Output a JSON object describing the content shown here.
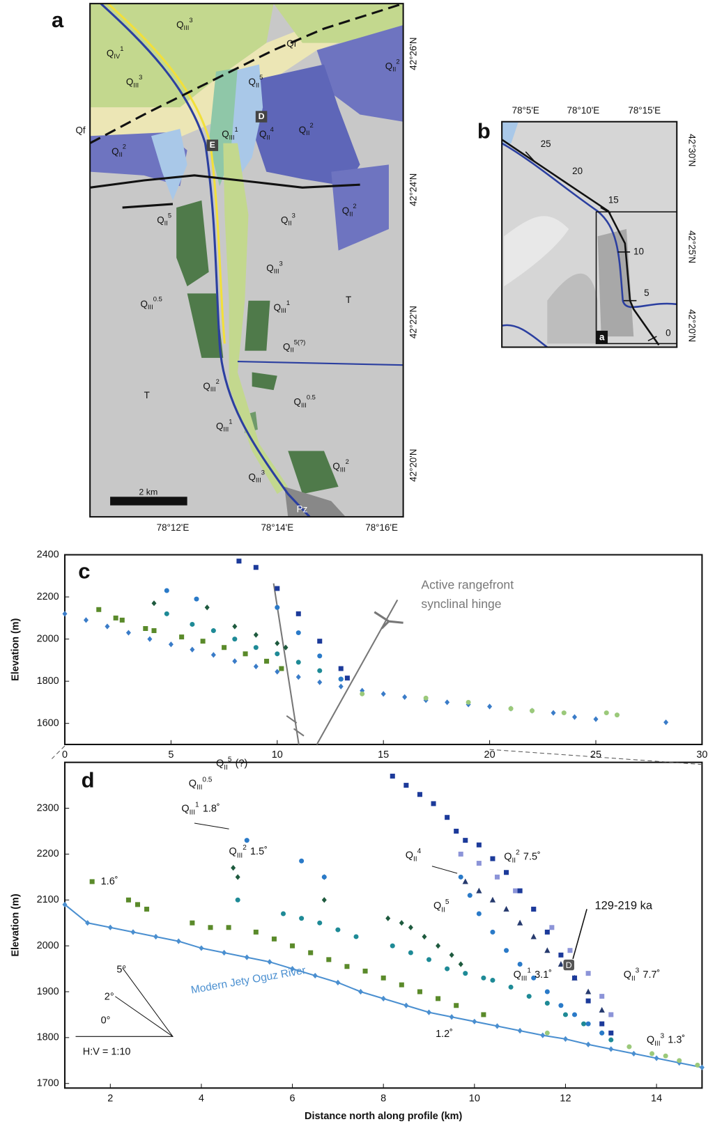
{
  "panel_labels": {
    "a": "a",
    "b": "b",
    "c": "c",
    "d": "d"
  },
  "map_a": {
    "lon_labels": [
      "78°12'E",
      "78°14'E",
      "78°16'E"
    ],
    "lat_labels": [
      "42°26'N",
      "42°24'N",
      "42°22'N",
      "42°20'N"
    ],
    "scale_label": "2 km",
    "labels": [
      {
        "text": "Q",
        "sub": "III",
        "sup": "3"
      },
      {
        "text": "Q",
        "sub": "IV",
        "sup": "1"
      },
      {
        "text": "Q",
        "sub": "III",
        "sup": "3"
      },
      "Qf",
      "Qf",
      {
        "text": "Q",
        "sub": "II",
        "sup": "2"
      },
      {
        "text": "Q",
        "sub": "II",
        "sup": "5"
      },
      {
        "text": "Q",
        "sub": "III",
        "sup": "1"
      },
      {
        "text": "Q",
        "sub": "II",
        "sup": "4"
      },
      {
        "text": "Q",
        "sub": "II",
        "sup": "2"
      },
      {
        "text": "Q",
        "sub": "II",
        "sup": "2"
      },
      {
        "text": "Q",
        "sub": "II",
        "sup": "5"
      },
      {
        "text": "Q",
        "sub": "II",
        "sup": "3"
      },
      {
        "text": "Q",
        "sub": "II",
        "sup": "2"
      },
      {
        "text": "Q",
        "sub": "III",
        "sup": "3"
      },
      {
        "text": "Q",
        "sub": "III",
        "sup": "0.5"
      },
      {
        "text": "Q",
        "sub": "III",
        "sup": "1"
      },
      "T",
      {
        "text": "Q",
        "sub": "II",
        "sup": "5(?)"
      },
      "T",
      {
        "text": "Q",
        "sub": "III",
        "sup": "2"
      },
      {
        "text": "Q",
        "sub": "III",
        "sup": "0.5"
      },
      {
        "text": "Q",
        "sub": "III",
        "sup": "1"
      },
      {
        "text": "Q",
        "sub": "III",
        "sup": "2"
      },
      {
        "text": "Q",
        "sub": "III",
        "sup": "3"
      },
      "Pz"
    ],
    "site_labels": [
      "D",
      "E"
    ]
  },
  "map_b": {
    "lon_labels": [
      "78°5'E",
      "78°10'E",
      "78°15'E"
    ],
    "lat_labels": [
      "42°30'N",
      "42°25'N",
      "42°20'N"
    ],
    "profile_ticks": [
      25,
      20,
      15,
      10,
      5,
      0
    ],
    "inset_label": "a"
  },
  "chart_data": [
    {
      "type": "scatter",
      "ylabel": "Elevation (m)",
      "xlim": [
        0,
        30
      ],
      "ylim": [
        1500,
        2400
      ],
      "xticks": [
        0,
        5,
        10,
        15,
        20,
        25,
        30
      ],
      "yticks": [
        1600,
        1800,
        2000,
        2200,
        2400
      ],
      "annotations": [
        "Active rangefront",
        "synclinal hinge"
      ],
      "series": [
        {
          "color": "#3a7cc8",
          "marker": "diamond",
          "x": [
            0,
            1,
            2,
            3,
            4,
            5,
            6,
            7,
            8,
            9,
            10,
            11,
            12,
            13,
            14,
            15,
            16,
            17,
            18,
            19,
            20,
            21,
            22,
            23,
            24,
            25,
            28.3
          ],
          "values": [
            2120,
            2090,
            2060,
            2030,
            2000,
            1975,
            1950,
            1925,
            1895,
            1870,
            1845,
            1820,
            1795,
            1775,
            1755,
            1740,
            1725,
            1710,
            1700,
            1690,
            1680,
            1670,
            1660,
            1650,
            1630,
            1620,
            1605
          ]
        },
        {
          "color": "#9bc97a",
          "marker": "circle",
          "x": [
            14,
            17,
            19,
            21,
            22,
            23.5,
            25.5,
            26
          ],
          "values": [
            1740,
            1720,
            1700,
            1670,
            1660,
            1650,
            1650,
            1640
          ]
        },
        {
          "color": "#5a8a2a",
          "marker": "square",
          "x": [
            1.6,
            2.4,
            2.7,
            3.8,
            4.2,
            5.5,
            6.5,
            7.5,
            8.5,
            9.5,
            10.2
          ],
          "values": [
            2140,
            2100,
            2090,
            2050,
            2040,
            2010,
            1990,
            1960,
            1930,
            1895,
            1860
          ]
        },
        {
          "color": "#1e8a96",
          "marker": "circle",
          "x": [
            4.8,
            6,
            7,
            8,
            9,
            10,
            11,
            12,
            13
          ],
          "values": [
            2120,
            2070,
            2040,
            2000,
            1960,
            1930,
            1890,
            1850,
            1810
          ]
        },
        {
          "color": "#1e5a3e",
          "marker": "diamond",
          "x": [
            4.2,
            6.7,
            8,
            9,
            10,
            10.4
          ],
          "values": [
            2170,
            2150,
            2060,
            2020,
            1980,
            1960
          ]
        },
        {
          "color": "#2a7ac8",
          "marker": "circle",
          "x": [
            4.8,
            6.2,
            10,
            11,
            12,
            13
          ],
          "values": [
            2230,
            2190,
            2150,
            2030,
            1920,
            1810
          ]
        },
        {
          "color": "#1c3a9a",
          "marker": "square",
          "x": [
            8.2,
            9,
            10,
            11,
            12,
            13,
            13.3
          ],
          "values": [
            2370,
            2340,
            2240,
            2120,
            1990,
            1860,
            1815
          ]
        }
      ]
    },
    {
      "type": "scatter",
      "xlabel": "Distance north along profile (km)",
      "ylabel": "Elevation (m)",
      "xlim": [
        1,
        15
      ],
      "ylim": [
        1690,
        2400
      ],
      "xticks": [
        2,
        4,
        6,
        8,
        10,
        12,
        14
      ],
      "yticks": [
        1700,
        1800,
        1900,
        2000,
        2100,
        2200,
        2300
      ],
      "annotations": [
        {
          "text": "Q",
          "sub": "II",
          "sup": "5",
          "note": "(?)"
        },
        {
          "text": "Q",
          "sub": "III",
          "sup": "0.5"
        },
        {
          "text": "Q",
          "sub": "III",
          "sup": "1",
          "note": "1.8˚"
        },
        {
          "text": "Q",
          "sub": "III",
          "sup": "2",
          "note": "1.5˚"
        },
        "1.6˚",
        "Modern Jety Oguz River",
        "1.2˚",
        {
          "text": "Q",
          "sub": "II",
          "sup": "4"
        },
        {
          "text": "Q",
          "sub": "II",
          "sup": "2",
          "note": "7.5˚"
        },
        {
          "text": "Q",
          "sub": "II",
          "sup": "5"
        },
        "129-219 ka",
        "D",
        {
          "text": "Q",
          "sub": "III",
          "sup": "1",
          "note": "3.1˚"
        },
        {
          "text": "Q",
          "sub": "II",
          "sup": "3",
          "note": "7.7˚"
        },
        {
          "text": "Q",
          "sub": "III",
          "sup": "3",
          "note": "1.3˚"
        },
        "5°",
        "2°",
        "0°",
        "H:V = 1:10"
      ],
      "series": [
        {
          "color": "#4a8fd0",
          "marker": "diamond",
          "line": true,
          "x": [
            1,
            1.5,
            2,
            2.5,
            3,
            3.5,
            4,
            4.5,
            5,
            5.5,
            6,
            6.5,
            7,
            7.5,
            8,
            8.5,
            9,
            9.5,
            10,
            10.5,
            11,
            11.5,
            12,
            12.5,
            13,
            13.5,
            14,
            14.5,
            15
          ],
          "values": [
            2090,
            2050,
            2040,
            2030,
            2020,
            2010,
            1995,
            1985,
            1975,
            1965,
            1950,
            1935,
            1920,
            1900,
            1885,
            1870,
            1855,
            1845,
            1835,
            1825,
            1815,
            1805,
            1797,
            1785,
            1775,
            1765,
            1755,
            1745,
            1735
          ]
        },
        {
          "color": "#9bc97a",
          "marker": "circle",
          "x": [
            11.6,
            13.4,
            13.9,
            14.2,
            14.5,
            14.9
          ],
          "values": [
            1810,
            1780,
            1765,
            1760,
            1750,
            1740
          ]
        },
        {
          "color": "#5a8a2a",
          "marker": "square",
          "x": [
            1.6,
            2.4,
            2.6,
            2.8,
            3.8,
            4.2,
            4.6,
            5.2,
            5.6,
            6,
            6.4,
            6.8,
            7.2,
            7.6,
            8,
            8.4,
            8.8,
            9.2,
            9.6,
            10.2
          ],
          "values": [
            2140,
            2100,
            2090,
            2080,
            2050,
            2040,
            2040,
            2030,
            2015,
            2000,
            1985,
            1970,
            1955,
            1945,
            1930,
            1915,
            1900,
            1885,
            1870,
            1850
          ]
        },
        {
          "color": "#1e8a96",
          "marker": "circle",
          "x": [
            4.8,
            5.8,
            6.2,
            6.6,
            7,
            7.4,
            8.2,
            8.6,
            9,
            9.4,
            9.8,
            10.2,
            10.4,
            10.8,
            11.2,
            11.6,
            12,
            12.4,
            12.8,
            13
          ],
          "values": [
            2100,
            2070,
            2060,
            2050,
            2035,
            2020,
            2000,
            1985,
            1970,
            1950,
            1940,
            1930,
            1925,
            1910,
            1890,
            1875,
            1850,
            1830,
            1810,
            1795
          ]
        },
        {
          "color": "#1e5a3e",
          "marker": "diamond",
          "x": [
            4.7,
            4.8,
            6.7,
            6.7,
            8.1,
            8.4,
            8.6,
            8.9,
            9.2,
            9.5,
            9.7
          ],
          "values": [
            2170,
            2150,
            2150,
            2100,
            2060,
            2050,
            2040,
            2020,
            2000,
            1980,
            1960
          ]
        },
        {
          "color": "#2a7ac8",
          "marker": "circle",
          "x": [
            5,
            6.2,
            6.7,
            9.7,
            9.9,
            10.1,
            10.4,
            10.7,
            11,
            11.3,
            11.6,
            11.9,
            12.2,
            12.5,
            12.8
          ],
          "values": [
            2230,
            2185,
            2150,
            2150,
            2110,
            2070,
            2030,
            1990,
            1960,
            1930,
            1900,
            1870,
            1850,
            1830,
            1810
          ]
        },
        {
          "color": "#263a6e",
          "marker": "triangle",
          "x": [
            9.8,
            10.1,
            10.4,
            10.7,
            11,
            11.3,
            11.6,
            11.9,
            12.2,
            12.5,
            12.8
          ],
          "values": [
            2140,
            2120,
            2100,
            2080,
            2050,
            2020,
            1990,
            1960,
            1930,
            1900,
            1860
          ]
        },
        {
          "color": "#8c94d8",
          "marker": "square",
          "x": [
            9.7,
            10.1,
            10.5,
            10.9,
            11.3,
            11.7,
            12.1,
            12.5,
            12.8,
            13
          ],
          "values": [
            2200,
            2180,
            2150,
            2120,
            2080,
            2040,
            1990,
            1940,
            1890,
            1850
          ]
        },
        {
          "color": "#1c3a9a",
          "marker": "square",
          "x": [
            8.2,
            8.5,
            8.8,
            9.1,
            9.4,
            9.6,
            9.8,
            10.1,
            10.4,
            10.7,
            11,
            11.3,
            11.6,
            11.9,
            12.2,
            12.5,
            12.8,
            13
          ],
          "values": [
            2370,
            2350,
            2330,
            2310,
            2280,
            2250,
            2230,
            2220,
            2190,
            2160,
            2120,
            2080,
            2030,
            1980,
            1930,
            1880,
            1830,
            1810
          ]
        }
      ]
    }
  ]
}
